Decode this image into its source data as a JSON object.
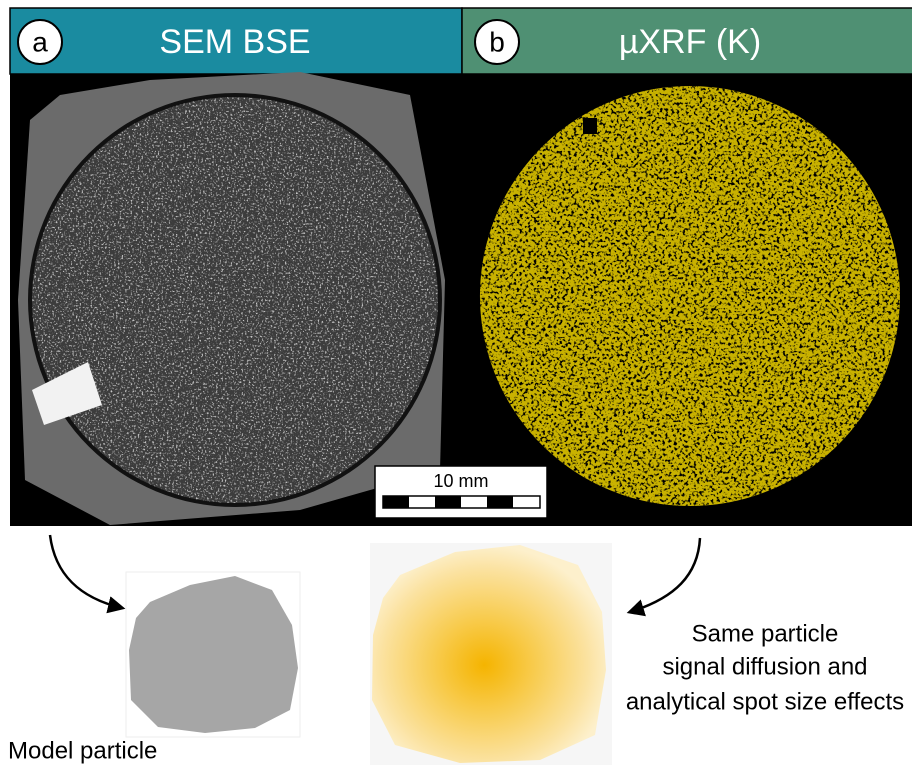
{
  "panels": [
    {
      "letter": "a",
      "title": "SEM BSE"
    },
    {
      "letter": "b",
      "title": "µXRF (K)"
    }
  ],
  "scale_bar": {
    "label": "10 mm"
  },
  "annotations": {
    "model_particle": "Model particle",
    "same_particle": [
      "Same particle",
      "signal diffusion and",
      "analytical spot size effects"
    ]
  }
}
